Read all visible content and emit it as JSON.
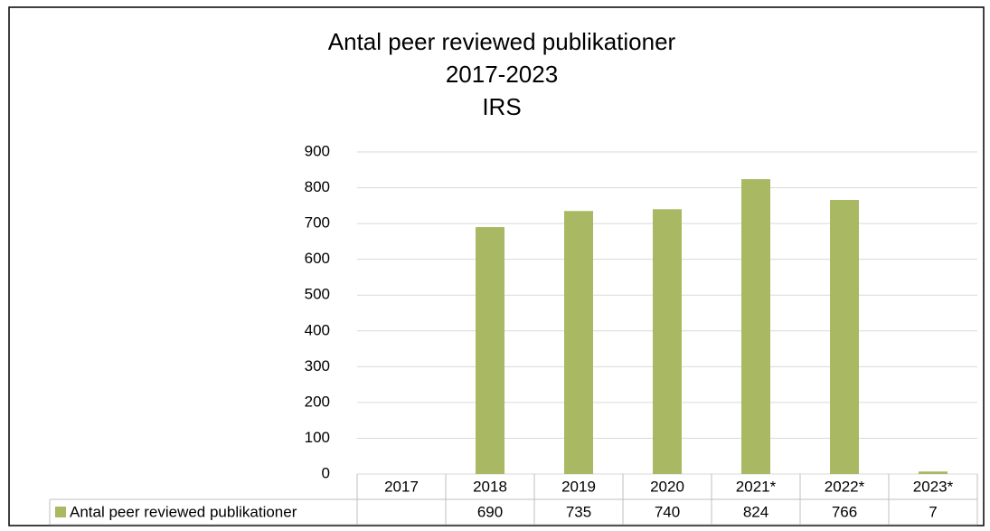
{
  "chart_data": {
    "type": "bar",
    "title_lines": [
      "Antal peer reviewed publikationer",
      "2017-2023",
      "IRS"
    ],
    "categories": [
      "2017",
      "2018",
      "2019",
      "2020",
      "2021*",
      "2022*",
      "2023*"
    ],
    "series": [
      {
        "name": "Antal peer reviewed publikationer",
        "color": "#a9b862",
        "values": [
          null,
          690,
          735,
          740,
          824,
          766,
          7
        ]
      }
    ],
    "ylim": [
      0,
      900
    ],
    "yticks": [
      0,
      100,
      200,
      300,
      400,
      500,
      600,
      700,
      800,
      900
    ],
    "grid": true,
    "data_table": true
  }
}
